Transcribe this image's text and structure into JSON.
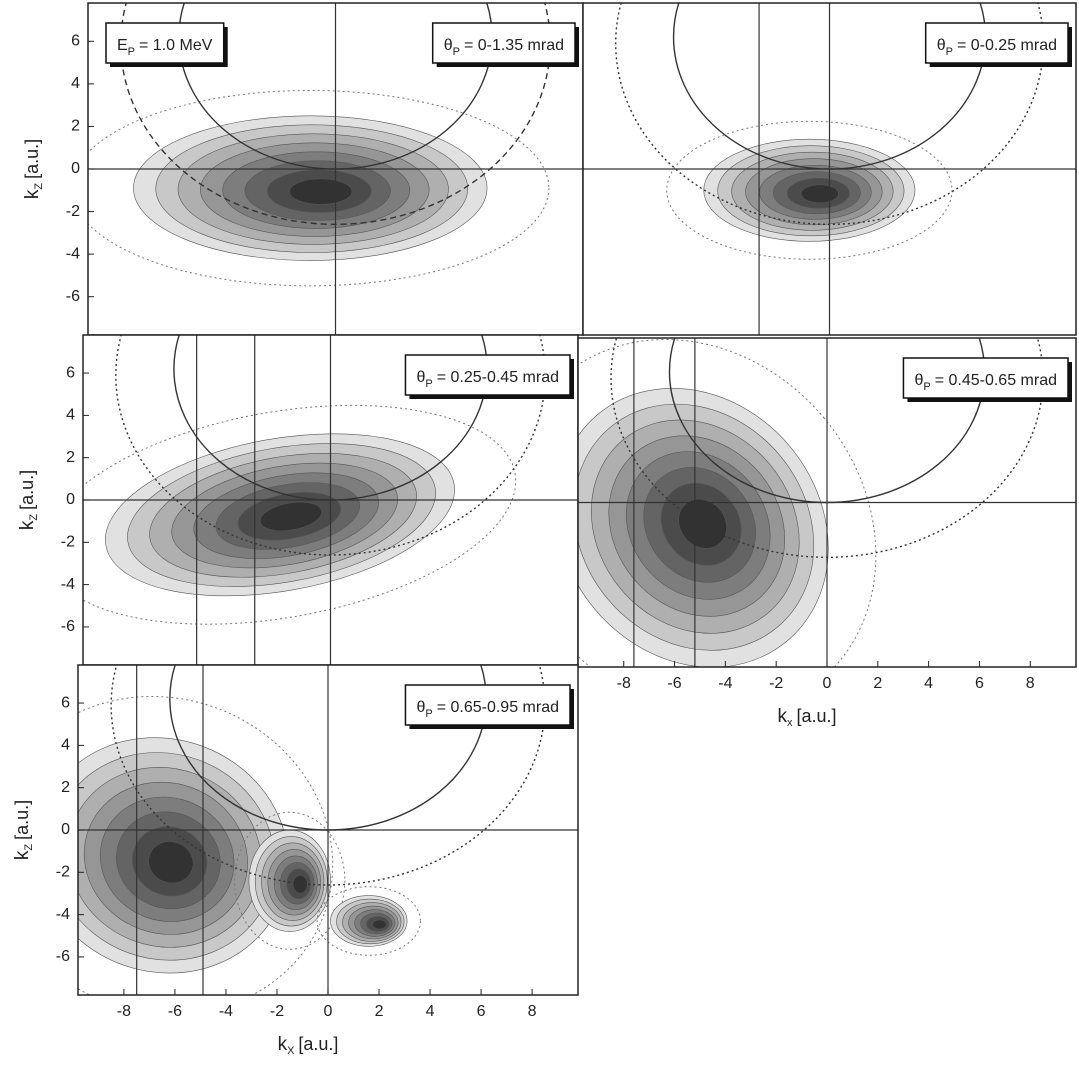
{
  "chart_data": [
    {
      "type": "contour",
      "xlim": [
        -9.8,
        9.8
      ],
      "ylim": [
        -7.8,
        7.8
      ],
      "yticks": [
        -6,
        -4,
        -2,
        0,
        2,
        4,
        6
      ],
      "ylabel": {
        "main": "k",
        "sub": "Z",
        "unit": "[a.u.]"
      },
      "annotations": [
        {
          "symbol": "E",
          "sub": "P",
          "text": "= 1.0 MeV"
        },
        {
          "symbol": "θ",
          "sub": "P",
          "text": "= 0-1.35 mrad"
        }
      ],
      "vlines": [
        0
      ],
      "hlines": [
        0
      ],
      "arcs": [
        {
          "cx": 0,
          "cz": 6.2,
          "r": 6.2,
          "style": "solid"
        },
        {
          "cx": 0,
          "cz": 5.9,
          "r": 8.5,
          "style": "dashed"
        }
      ]
    },
    {
      "type": "contour",
      "xlim": [
        -9.8,
        9.8
      ],
      "ylim": [
        -7.8,
        7.8
      ],
      "annotations": [
        {
          "symbol": "θ",
          "sub": "P",
          "text": "= 0-0.25 mrad"
        }
      ],
      "vlines": [
        -2.8,
        0
      ],
      "hlines": [
        0
      ],
      "arcs": [
        {
          "cx": 0,
          "cz": 6.2,
          "r": 6.2,
          "style": "solid"
        },
        {
          "cx": 0,
          "cz": 5.9,
          "r": 8.5,
          "style": "dotted"
        }
      ]
    },
    {
      "type": "contour",
      "xlim": [
        -9.8,
        9.8
      ],
      "ylim": [
        -7.8,
        7.8
      ],
      "yticks": [
        -6,
        -4,
        -2,
        0,
        2,
        4,
        6
      ],
      "ylabel": {
        "main": "k",
        "sub": "Z",
        "unit": "[a.u.]"
      },
      "annotations": [
        {
          "symbol": "θ",
          "sub": "P",
          "text": "= 0.25-0.45 mrad"
        }
      ],
      "vlines": [
        -5.3,
        -3.0,
        0
      ],
      "hlines": [
        0
      ],
      "arcs": [
        {
          "cx": 0,
          "cz": 6.2,
          "r": 6.2,
          "style": "solid"
        },
        {
          "cx": 0,
          "cz": 5.9,
          "r": 8.5,
          "style": "dotted"
        }
      ]
    },
    {
      "type": "contour",
      "xlim": [
        -9.8,
        9.8
      ],
      "ylim": [
        -7.8,
        7.8
      ],
      "xticks": [
        -8,
        -6,
        -4,
        -2,
        0,
        2,
        4,
        6,
        8
      ],
      "xlabel": {
        "main": "k",
        "sub": "x",
        "unit": "[a.u.]"
      },
      "annotations": [
        {
          "symbol": "θ",
          "sub": "P",
          "text": "= 0.45-0.65 mrad"
        }
      ],
      "vlines": [
        -7.6,
        -5.2,
        0
      ],
      "hlines": [
        0
      ],
      "arcs": [
        {
          "cx": 0,
          "cz": 6.2,
          "r": 6.2,
          "style": "solid"
        },
        {
          "cx": 0,
          "cz": 5.9,
          "r": 8.5,
          "style": "dotted"
        }
      ]
    },
    {
      "type": "contour",
      "xlim": [
        -9.8,
        9.8
      ],
      "ylim": [
        -7.8,
        7.8
      ],
      "xticks": [
        -8,
        -6,
        -4,
        -2,
        0,
        2,
        4,
        6,
        8
      ],
      "yticks": [
        -6,
        -4,
        -2,
        0,
        2,
        4,
        6
      ],
      "xlabel": {
        "main": "k",
        "sub": "X",
        "unit": "[a.u.]"
      },
      "ylabel": {
        "main": "k",
        "sub": "Z",
        "unit": "[a.u.]"
      },
      "annotations": [
        {
          "symbol": "θ",
          "sub": "P",
          "text": "= 0.65-0.95 mrad"
        }
      ],
      "vlines": [
        -7.5,
        -4.9,
        0
      ],
      "hlines": [
        0
      ],
      "arcs": [
        {
          "cx": 0,
          "cz": 6.2,
          "r": 6.2,
          "style": "solid"
        },
        {
          "cx": 0,
          "cz": 5.9,
          "r": 8.5,
          "style": "dotted"
        }
      ]
    }
  ]
}
